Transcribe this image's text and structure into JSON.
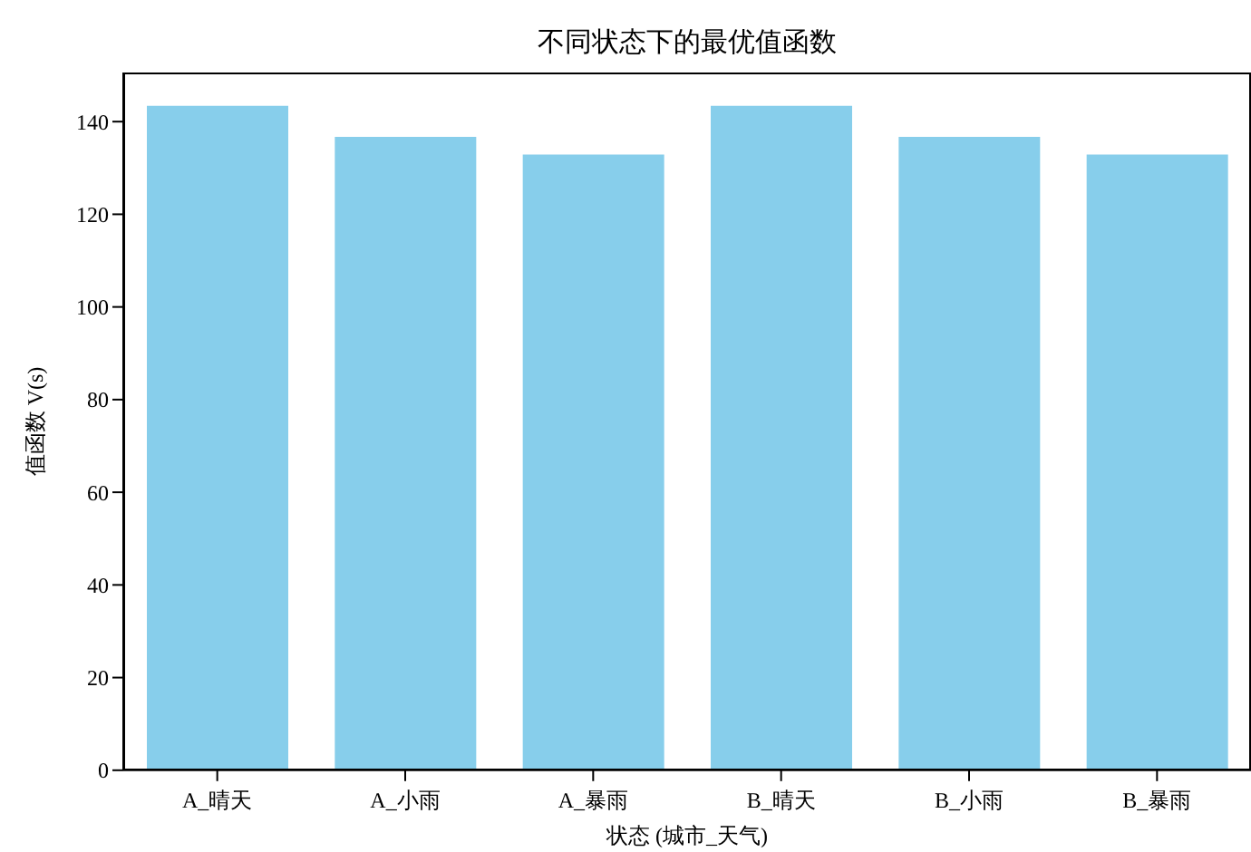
{
  "chart_data": {
    "type": "bar",
    "title": "不同状态下的最优值函数",
    "xlabel": "状态 (城市_天气)",
    "ylabel": "值函数 V(s)",
    "categories": [
      "A_晴天",
      "A_小雨",
      "A_暴雨",
      "B_晴天",
      "B_小雨",
      "B_暴雨"
    ],
    "values": [
      143.4,
      136.7,
      132.9,
      143.4,
      136.7,
      132.9
    ],
    "color": "#87ceeb",
    "ylim": [
      0,
      150.6
    ],
    "yticks": [
      0,
      20,
      40,
      60,
      80,
      100,
      120,
      140
    ],
    "grid": false,
    "legend": false
  }
}
